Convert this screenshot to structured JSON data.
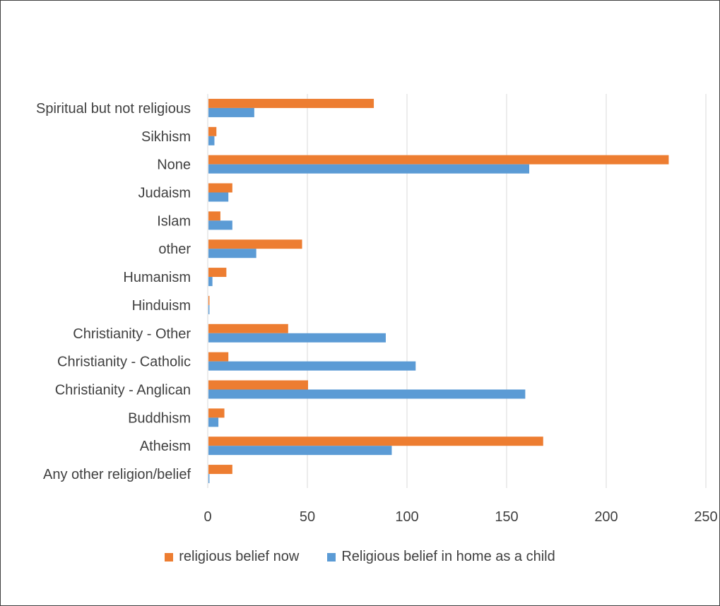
{
  "chart_data": {
    "type": "bar",
    "orientation": "horizontal",
    "categories": [
      "Spiritual but not religious",
      "Sikhism",
      "None",
      "Judaism",
      "Islam",
      "other",
      "Humanism",
      "Hinduism",
      "Christianity - Other",
      "Christianity - Catholic",
      "Christianity - Anglican",
      "Buddhism",
      "Atheism",
      "Any other religion/belief"
    ],
    "series": [
      {
        "name": "religious belief now",
        "color": "#ED7D31",
        "values": [
          83,
          4,
          231,
          12,
          6,
          47,
          9,
          0.5,
          40,
          10,
          50,
          8,
          168,
          12
        ]
      },
      {
        "name": "Religious belief in home as a child",
        "color": "#5B9BD5",
        "values": [
          23,
          3,
          161,
          10,
          12,
          24,
          2,
          0.5,
          89,
          104,
          159,
          5,
          92,
          0.5
        ]
      }
    ],
    "xlim": [
      0,
      250
    ],
    "xticks": [
      "0",
      "50",
      "100",
      "150",
      "200",
      "250"
    ],
    "grid": "vertical",
    "legend_position": "bottom",
    "title": "",
    "xlabel": "",
    "ylabel": ""
  }
}
